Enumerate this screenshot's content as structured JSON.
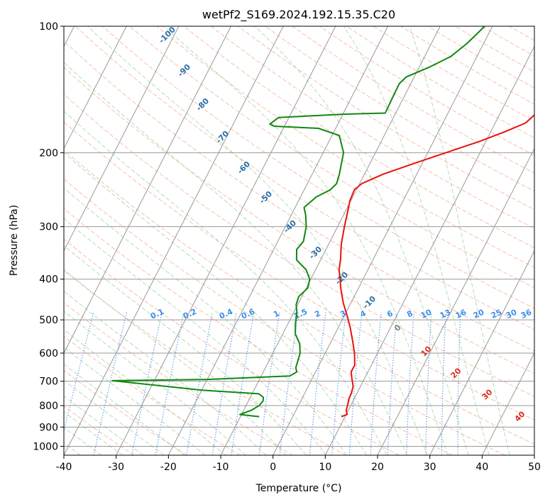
{
  "chart_data": {
    "type": "line",
    "title": "wetPf2_S169.2024.192.15.35.C20",
    "xlabel": "Temperature (°C)",
    "ylabel": "Pressure (hPa)",
    "xlim": [
      -40,
      50
    ],
    "ylim": [
      1050,
      100
    ],
    "y_scale": "log",
    "x_ticks": [
      -40,
      -30,
      -20,
      -10,
      0,
      10,
      20,
      30,
      40,
      50
    ],
    "y_ticks": [
      100,
      200,
      300,
      400,
      500,
      600,
      700,
      800,
      900,
      1000
    ],
    "grid": true,
    "colors": {
      "temperature": "#e8120c",
      "dewpoint": "#118811",
      "isotherm": "#999999",
      "dry_adiabat": "#f4a582",
      "moist_adiabat": "#9fcf9f",
      "mixing_ratio": "#3f8fe8",
      "adiabat_label": "#2a6fa8",
      "dry_label": "#d7301f"
    },
    "series": [
      {
        "key": "temperature",
        "points": [
          [
            9.3,
            850
          ],
          [
            10.2,
            840
          ],
          [
            9.6,
            820
          ],
          [
            9.4,
            800
          ],
          [
            9.0,
            770
          ],
          [
            8.9,
            745
          ],
          [
            8.6,
            720
          ],
          [
            7.6,
            690
          ],
          [
            6.8,
            665
          ],
          [
            6.8,
            640
          ],
          [
            5.6,
            600
          ],
          [
            4.0,
            560
          ],
          [
            2.2,
            520
          ],
          [
            0.6,
            490
          ],
          [
            -1.5,
            455
          ],
          [
            -3.4,
            420
          ],
          [
            -4.4,
            400
          ],
          [
            -5.5,
            380
          ],
          [
            -6.2,
            360
          ],
          [
            -7.6,
            330
          ],
          [
            -8.7,
            300
          ],
          [
            -9.4,
            280
          ],
          [
            -10.2,
            260
          ],
          [
            -10.4,
            245
          ],
          [
            -9.6,
            237
          ],
          [
            -6.4,
            225
          ],
          [
            -1.5,
            212
          ],
          [
            3.5,
            200
          ],
          [
            8.8,
            188
          ],
          [
            12.8,
            178
          ],
          [
            15.8,
            170
          ],
          [
            16.8,
            162
          ],
          [
            18.5,
            150
          ],
          [
            19.7,
            142
          ],
          [
            23.0,
            130
          ],
          [
            26.5,
            120
          ],
          [
            29.3,
            112
          ],
          [
            31.5,
            106
          ],
          [
            33.0,
            100
          ]
        ]
      },
      {
        "key": "dewpoint",
        "points": [
          [
            -6.4,
            850
          ],
          [
            -10.3,
            840
          ],
          [
            -8.5,
            820
          ],
          [
            -7.5,
            800
          ],
          [
            -7.2,
            780
          ],
          [
            -7.5,
            765
          ],
          [
            -8.7,
            750
          ],
          [
            -20.0,
            735
          ],
          [
            -38.0,
            698
          ],
          [
            -20.0,
            693
          ],
          [
            -4.5,
            680
          ],
          [
            -3.6,
            665
          ],
          [
            -4.2,
            650
          ],
          [
            -4.8,
            600
          ],
          [
            -5.8,
            570
          ],
          [
            -7.6,
            540
          ],
          [
            -8.6,
            510
          ],
          [
            -9.4,
            480
          ],
          [
            -10.3,
            460
          ],
          [
            -10.6,
            440
          ],
          [
            -9.7,
            420
          ],
          [
            -10.2,
            400
          ],
          [
            -11.8,
            380
          ],
          [
            -14.6,
            360
          ],
          [
            -15.6,
            340
          ],
          [
            -15.1,
            325
          ],
          [
            -16.0,
            300
          ],
          [
            -17.2,
            282
          ],
          [
            -18.3,
            270
          ],
          [
            -17.0,
            255
          ],
          [
            -15.0,
            245
          ],
          [
            -14.4,
            237
          ],
          [
            -14.8,
            225
          ],
          [
            -16.1,
            200
          ],
          [
            -18.6,
            182
          ],
          [
            -23.3,
            175
          ],
          [
            -32.0,
            173
          ],
          [
            -33.0,
            171
          ],
          [
            -32.0,
            165
          ],
          [
            -20.0,
            162
          ],
          [
            -12.0,
            161
          ],
          [
            -12.1,
            150
          ],
          [
            -12.2,
            137
          ],
          [
            -11.5,
            132
          ],
          [
            -8.0,
            125
          ],
          [
            -5.0,
            118
          ],
          [
            -3.2,
            110
          ],
          [
            -2.0,
            103
          ],
          [
            -1.5,
            100
          ]
        ]
      }
    ],
    "moist_adiabat_labels": [
      "-100",
      "-90",
      "-80",
      "-70",
      "-60",
      "-50",
      "-40",
      "-30",
      "-20",
      "-10"
    ],
    "mixing_ratio_labels": [
      "0.1",
      "0.2",
      "0.4",
      "0.6",
      "1",
      "1.5",
      "2",
      "3",
      "4",
      "6",
      "8",
      "10",
      "13",
      "16",
      "20",
      "25",
      "30",
      "36"
    ],
    "dry_adiabat_labels": [
      "0",
      "10",
      "20",
      "30",
      "40"
    ]
  }
}
